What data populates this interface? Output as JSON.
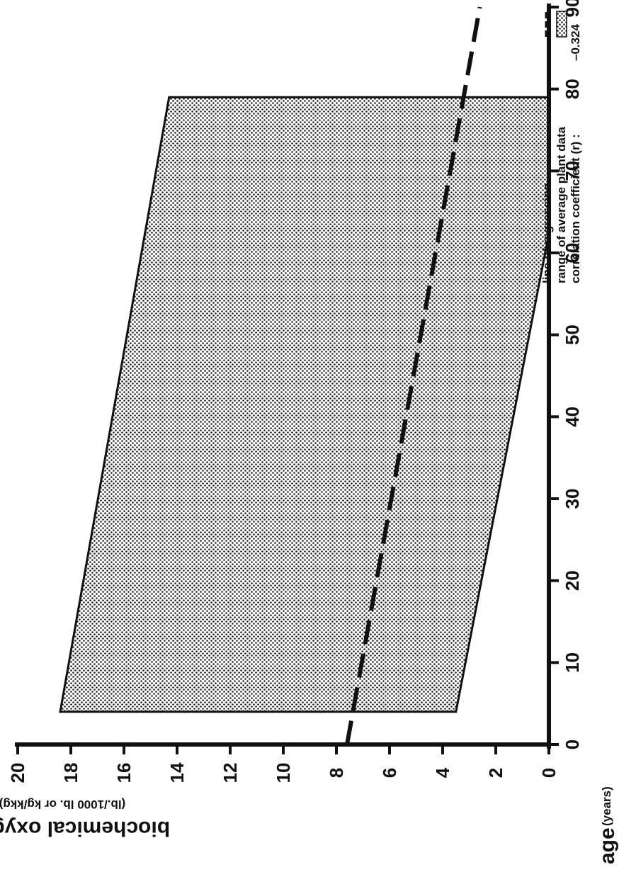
{
  "chart_data": {
    "type": "area",
    "xlabel": "age",
    "xlabel_unit": "(years)",
    "ylabel": "biochemical oxygen demand",
    "ylabel_unit": "(lb./1000 lb. or kg/kkg)",
    "xlim": [
      0,
      90
    ],
    "ylim": [
      0,
      20
    ],
    "x_ticks": [
      0,
      10,
      20,
      30,
      40,
      50,
      60,
      70,
      80,
      90
    ],
    "y_ticks": [
      0,
      2,
      4,
      6,
      8,
      10,
      12,
      14,
      16,
      18,
      20
    ],
    "grid": false,
    "orientation": "rotated 90 degrees clockwise",
    "legend_position": "top-right",
    "series": [
      {
        "name": "line of regression",
        "kind": "dashed-line",
        "x": [
          0,
          90
        ],
        "y": [
          7.6,
          2.6
        ]
      },
      {
        "name": "range of average plant data",
        "kind": "shaded-band",
        "x": [
          4,
          79
        ],
        "lower": [
          3.5,
          -1.0
        ],
        "upper": [
          18.4,
          14.3
        ]
      }
    ],
    "annotation": {
      "label": "correlation coefficient (r) :",
      "value": "–0.324"
    }
  }
}
